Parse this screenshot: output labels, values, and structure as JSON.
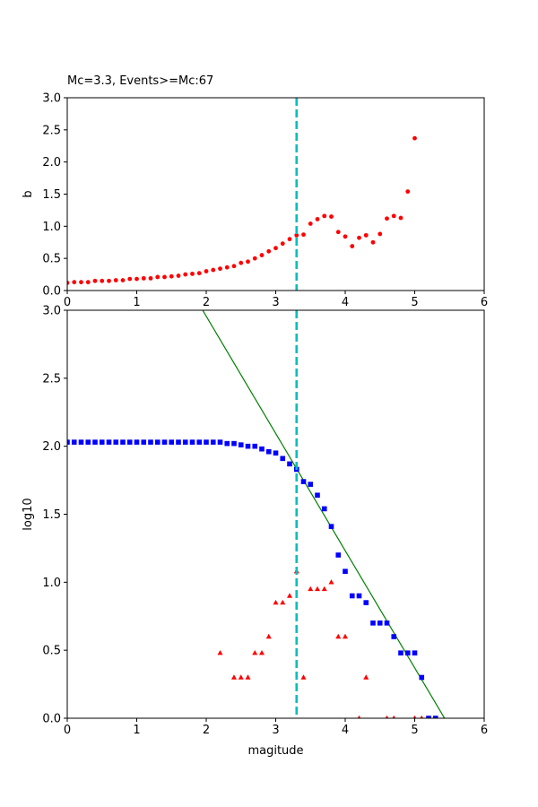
{
  "chart_data": [
    {
      "type": "scatter",
      "title": "Mc=3.3, Events>=Mc:67",
      "xlabel": "",
      "ylabel": "b",
      "xlim": [
        0,
        6
      ],
      "ylim": [
        0,
        3.0
      ],
      "xticks": [
        "0",
        "1",
        "2",
        "3",
        "4",
        "5",
        "6"
      ],
      "yticks": [
        "0.0",
        "0.5",
        "1.0",
        "1.5",
        "2.0",
        "2.5",
        "3.0"
      ],
      "grid": false,
      "mc_line": {
        "x": 3.3,
        "color": "#00bfbf",
        "style": "dashed"
      },
      "series": [
        {
          "marker": "dot",
          "color": "#ff0000",
          "x": [
            0.0,
            0.1,
            0.2,
            0.3,
            0.4,
            0.5,
            0.6,
            0.7,
            0.8,
            0.9,
            1.0,
            1.1,
            1.2,
            1.3,
            1.4,
            1.5,
            1.6,
            1.7,
            1.8,
            1.9,
            2.0,
            2.1,
            2.2,
            2.3,
            2.4,
            2.5,
            2.6,
            2.7,
            2.8,
            2.9,
            3.0,
            3.1,
            3.2,
            3.3,
            3.4,
            3.5,
            3.6,
            3.7,
            3.8,
            3.9,
            4.0,
            4.1,
            4.2,
            4.3,
            4.4,
            4.5,
            4.6,
            4.7,
            4.8,
            4.9,
            5.0
          ],
          "y": [
            0.12,
            0.13,
            0.13,
            0.13,
            0.15,
            0.15,
            0.15,
            0.16,
            0.16,
            0.18,
            0.18,
            0.19,
            0.19,
            0.21,
            0.21,
            0.22,
            0.23,
            0.25,
            0.26,
            0.27,
            0.3,
            0.32,
            0.34,
            0.36,
            0.38,
            0.43,
            0.45,
            0.5,
            0.55,
            0.61,
            0.66,
            0.73,
            0.8,
            0.86,
            0.87,
            1.04,
            1.11,
            1.16,
            1.15,
            0.91,
            0.84,
            0.69,
            0.82,
            0.86,
            0.75,
            0.88,
            1.12,
            1.16,
            1.13,
            1.54,
            2.37
          ]
        }
      ]
    },
    {
      "type": "scatter",
      "title": "",
      "xlabel": "magitude",
      "ylabel": "log10",
      "xlim": [
        0,
        6
      ],
      "ylim": [
        0,
        3.0
      ],
      "xticks": [
        "0",
        "1",
        "2",
        "3",
        "4",
        "5",
        "6"
      ],
      "yticks": [
        "0.0",
        "0.5",
        "1.0",
        "1.5",
        "2.0",
        "2.5",
        "3.0"
      ],
      "grid": false,
      "mc_line": {
        "x": 3.3,
        "color": "#00bfbf",
        "style": "dashed"
      },
      "fit_line": {
        "intercept": 4.68,
        "slope": -0.862,
        "color": "#008000"
      },
      "series": [
        {
          "marker": "square",
          "color": "#0000ff",
          "x": [
            0.0,
            0.1,
            0.2,
            0.3,
            0.4,
            0.5,
            0.6,
            0.7,
            0.8,
            0.9,
            1.0,
            1.1,
            1.2,
            1.3,
            1.4,
            1.5,
            1.6,
            1.7,
            1.8,
            1.9,
            2.0,
            2.1,
            2.2,
            2.3,
            2.4,
            2.5,
            2.6,
            2.7,
            2.8,
            2.9,
            3.0,
            3.1,
            3.2,
            3.3,
            3.4,
            3.5,
            3.6,
            3.7,
            3.8,
            3.9,
            4.0,
            4.1,
            4.2,
            4.3,
            4.4,
            4.5,
            4.6,
            4.7,
            4.8,
            4.9,
            5.0,
            5.1,
            5.2,
            5.3
          ],
          "y": [
            2.03,
            2.03,
            2.03,
            2.03,
            2.03,
            2.03,
            2.03,
            2.03,
            2.03,
            2.03,
            2.03,
            2.03,
            2.03,
            2.03,
            2.03,
            2.03,
            2.03,
            2.03,
            2.03,
            2.03,
            2.03,
            2.03,
            2.03,
            2.02,
            2.02,
            2.01,
            2.0,
            2.0,
            1.98,
            1.96,
            1.95,
            1.91,
            1.87,
            1.83,
            1.74,
            1.72,
            1.64,
            1.54,
            1.41,
            1.2,
            1.08,
            0.9,
            0.9,
            0.85,
            0.7,
            0.7,
            0.7,
            0.6,
            0.48,
            0.48,
            0.48,
            0.3,
            0.0,
            0.0
          ]
        },
        {
          "marker": "triangle",
          "color": "#ff0000",
          "x": [
            2.2,
            2.4,
            2.5,
            2.6,
            2.7,
            2.8,
            2.9,
            3.0,
            3.1,
            3.2,
            3.3,
            3.4,
            3.5,
            3.6,
            3.7,
            3.8,
            3.9,
            4.0,
            4.2,
            4.3,
            4.6,
            4.7,
            5.0,
            5.1
          ],
          "y": [
            0.48,
            0.3,
            0.3,
            0.3,
            0.48,
            0.48,
            0.6,
            0.85,
            0.85,
            0.9,
            1.08,
            0.3,
            0.95,
            0.95,
            0.95,
            1.0,
            0.6,
            0.6,
            0.0,
            0.3,
            0.0,
            0.0,
            0.0,
            0.0
          ]
        }
      ]
    }
  ]
}
